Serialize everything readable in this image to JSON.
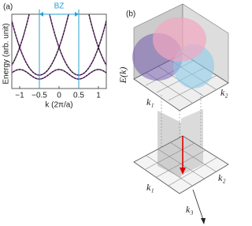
{
  "panel_a": {
    "label": "(a)",
    "annotation": "BZ",
    "xlabel": "k (2π/a)",
    "ylabel": "Energy (arb. unit)",
    "xlim": [
      -1.2,
      1.2
    ],
    "xticks": [
      {
        "value": -1,
        "label": "−1"
      },
      {
        "value": -0.5,
        "label": "−0.5"
      },
      0,
      0.5,
      1
    ],
    "bz_bounds": [
      -0.5,
      0.5
    ]
  },
  "panel_b": {
    "label": "(b)",
    "energy_axis": "E(k)",
    "k1_top": "k₁",
    "k2_top": "k₂",
    "k1_bottom": "k₁",
    "k2_bottom": "k₂",
    "k3": "k₃"
  }
}
